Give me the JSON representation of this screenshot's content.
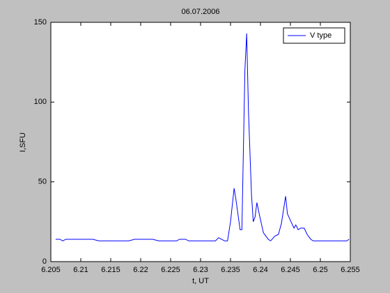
{
  "chart_data": {
    "type": "line",
    "title": "06.07.2006",
    "xlabel": "t, UT",
    "ylabel": "I,SFU",
    "xlim": [
      6.205,
      6.255
    ],
    "xticks": [
      6.205,
      6.21,
      6.215,
      6.22,
      6.225,
      6.23,
      6.235,
      6.24,
      6.245,
      6.25,
      6.255
    ],
    "ylim": [
      0,
      150
    ],
    "yticks": [
      0,
      50,
      100,
      150
    ],
    "grid": false,
    "legend": "upper right",
    "series": [
      {
        "name": "V type",
        "color": "#0000ff",
        "x": [
          6.2058,
          6.2065,
          6.207,
          6.2075,
          6.212,
          6.213,
          6.218,
          6.219,
          6.222,
          6.223,
          6.226,
          6.2265,
          6.2275,
          6.228,
          6.2325,
          6.233,
          6.2335,
          6.234,
          6.2345,
          6.235,
          6.2356,
          6.2359,
          6.2366,
          6.2369,
          6.2374,
          6.2377,
          6.238,
          6.2385,
          6.2388,
          6.2391,
          6.2394,
          6.2399,
          6.2405,
          6.2413,
          6.2417,
          6.2424,
          6.243,
          6.2435,
          6.2442,
          6.2445,
          6.2451,
          6.2456,
          6.2459,
          6.2463,
          6.2467,
          6.2473,
          6.2478,
          6.2484,
          6.2488,
          6.2544,
          6.2548
        ],
        "values": [
          14,
          14,
          13,
          14,
          14,
          13,
          13,
          14,
          14,
          13,
          13,
          14,
          14,
          13,
          13,
          15,
          14,
          13,
          13,
          25,
          46,
          39,
          20,
          20,
          120,
          143,
          94,
          42,
          25,
          28,
          37,
          28,
          18,
          14,
          13,
          16,
          17,
          24,
          41,
          30,
          25,
          21,
          23,
          20,
          21,
          21,
          17,
          14,
          13,
          13,
          14
        ]
      }
    ]
  }
}
